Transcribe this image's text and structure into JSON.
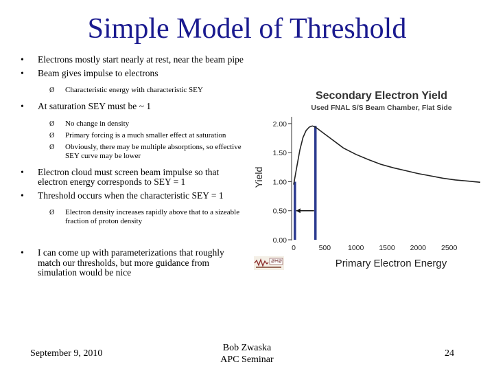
{
  "title": "Simple Model of Threshold",
  "bullets": [
    {
      "text": "Electrons mostly start nearly at rest, near the beam pipe"
    },
    {
      "text": "Beam gives impulse to electrons",
      "sub": [
        "Characteristic energy with characteristic SEY"
      ]
    },
    {
      "text": "At saturation SEY must be ~ 1",
      "sub": [
        "No change in density",
        "Primary forcing is a much smaller effect at saturation",
        "Obviously, there may be multiple absorptions, so effective SEY curve may be lower"
      ]
    },
    {
      "text": "Electron cloud must screen beam impulse so that electron energy corresponds to SEY = 1"
    },
    {
      "text": "Threshold occurs when the characteristic SEY = 1",
      "sub": [
        "Electron density increases rapidly above that to a sizeable fraction of proton density"
      ]
    },
    {
      "text": "I can come up with parameterizations that roughly match our thresholds, but more guidance from simulation would be nice"
    }
  ],
  "bullet_glyph": "•",
  "sub_glyph": "Ø",
  "chart_data": {
    "type": "line",
    "title": "Secondary Electron Yield",
    "subtitle": "Used FNAL S/S Beam Chamber, Flat Side",
    "xlabel": "Primary Electron Energy",
    "ylabel": "Yield",
    "xlim": [
      0,
      3000
    ],
    "ylim": [
      0,
      2.2
    ],
    "x_ticks": [
      "0",
      "500",
      "1000",
      "1500",
      "2000",
      "2500"
    ],
    "y_ticks": [
      "0.00",
      "0.50",
      "1.00",
      "1.50",
      "2.00"
    ],
    "series": [
      {
        "color": "#222222",
        "x": [
          0,
          50,
          100,
          150,
          200,
          250,
          300,
          350,
          400,
          500,
          600,
          700,
          800,
          1000,
          1200,
          1400,
          1600,
          1800,
          2000,
          2200,
          2400,
          2600,
          2800,
          3000
        ],
        "y": [
          0.95,
          1.25,
          1.55,
          1.76,
          1.88,
          1.94,
          1.96,
          1.94,
          1.9,
          1.82,
          1.74,
          1.66,
          1.58,
          1.47,
          1.38,
          1.3,
          1.24,
          1.19,
          1.14,
          1.1,
          1.06,
          1.03,
          1.01,
          0.99
        ]
      }
    ],
    "markers": [
      {
        "x": 20,
        "y": 1.0,
        "color": "#2b3a8f"
      },
      {
        "x": 350,
        "y": 1.96,
        "color": "#2b3a8f"
      }
    ],
    "arrow_at_y": 0.5,
    "grid": false
  },
  "footer": {
    "date": "September 9, 2010",
    "author": "Bob Zwaska",
    "event": "APC Seminar",
    "page": "24"
  }
}
